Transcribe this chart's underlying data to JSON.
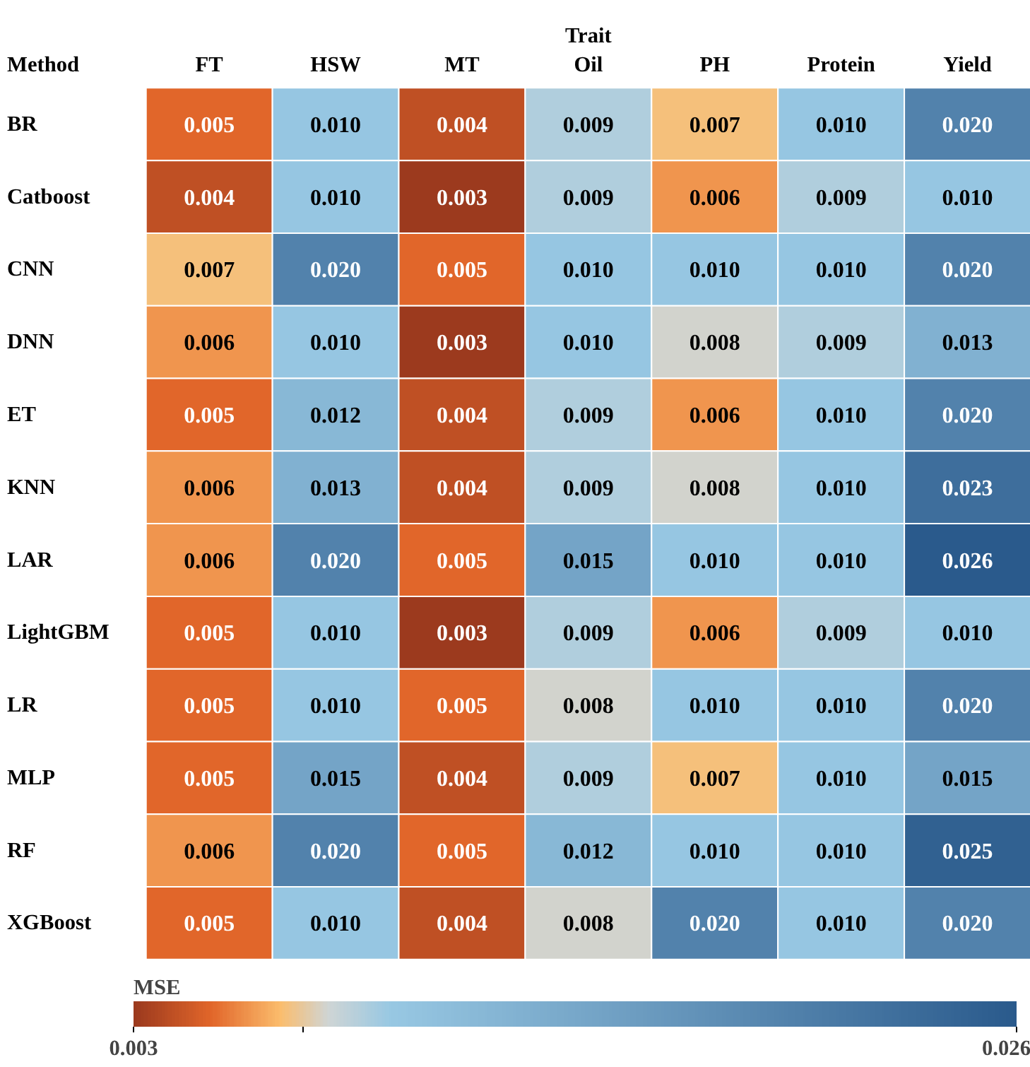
{
  "chart_data": {
    "type": "heatmap",
    "xlabel": "Trait",
    "ylabel": "Method",
    "clabel": "MSE",
    "categories": [
      "FT",
      "HSW",
      "MT",
      "Oil",
      "PH",
      "Protein",
      "Yield"
    ],
    "y_categories": [
      "BR",
      "Catboost",
      "CNN",
      "DNN",
      "ET",
      "KNN",
      "LAR",
      "LightGBM",
      "LR",
      "MLP",
      "RF",
      "XGBoost"
    ],
    "cells": [
      [
        0.005,
        0.01,
        0.004,
        0.009,
        0.007,
        0.01,
        0.02
      ],
      [
        0.004,
        0.01,
        0.003,
        0.009,
        0.006,
        0.009,
        0.01
      ],
      [
        0.007,
        0.02,
        0.005,
        0.01,
        0.01,
        0.01,
        0.02
      ],
      [
        0.006,
        0.01,
        0.003,
        0.01,
        0.008,
        0.009,
        0.013
      ],
      [
        0.005,
        0.012,
        0.004,
        0.009,
        0.006,
        0.01,
        0.02
      ],
      [
        0.006,
        0.013,
        0.004,
        0.009,
        0.008,
        0.01,
        0.023
      ],
      [
        0.006,
        0.02,
        0.005,
        0.015,
        0.01,
        0.01,
        0.026
      ],
      [
        0.005,
        0.01,
        0.003,
        0.009,
        0.006,
        0.009,
        0.01
      ],
      [
        0.005,
        0.01,
        0.005,
        0.008,
        0.01,
        0.01,
        0.02
      ],
      [
        0.005,
        0.015,
        0.004,
        0.009,
        0.007,
        0.01,
        0.015
      ],
      [
        0.006,
        0.02,
        0.005,
        0.012,
        0.01,
        0.01,
        0.025
      ],
      [
        0.005,
        0.01,
        0.004,
        0.008,
        0.02,
        0.01,
        0.02
      ]
    ],
    "cell_labels": [
      [
        "0.005",
        "0.010",
        "0.004",
        "0.009",
        "0.007",
        "0.010",
        "0.020"
      ],
      [
        "0.004",
        "0.010",
        "0.003",
        "0.009",
        "0.006",
        "0.009",
        "0.010"
      ],
      [
        "0.007",
        "0.020",
        "0.005",
        "0.010",
        "0.010",
        "0.010",
        "0.020"
      ],
      [
        "0.006",
        "0.010",
        "0.003",
        "0.010",
        "0.008",
        "0.009",
        "0.013"
      ],
      [
        "0.005",
        "0.012",
        "0.004",
        "0.009",
        "0.006",
        "0.010",
        "0.020"
      ],
      [
        "0.006",
        "0.013",
        "0.004",
        "0.009",
        "0.008",
        "0.010",
        "0.023"
      ],
      [
        "0.006",
        "0.020",
        "0.005",
        "0.015",
        "0.010",
        "0.010",
        "0.026"
      ],
      [
        "0.005",
        "0.010",
        "0.003",
        "0.009",
        "0.006",
        "0.009",
        "0.010"
      ],
      [
        "0.005",
        "0.010",
        "0.005",
        "0.008",
        "0.010",
        "0.010",
        "0.020"
      ],
      [
        "0.005",
        "0.015",
        "0.004",
        "0.009",
        "0.007",
        "0.010",
        "0.015"
      ],
      [
        "0.006",
        "0.020",
        "0.005",
        "0.012",
        "0.010",
        "0.010",
        "0.025"
      ],
      [
        "0.005",
        "0.010",
        "0.004",
        "0.008",
        "0.020",
        "0.010",
        "0.020"
      ]
    ],
    "clim": [
      0.003,
      0.026
    ],
    "cticks": [
      0.003,
      {
        "value": 0.0074,
        "label": null
      },
      0.026
    ]
  }
}
